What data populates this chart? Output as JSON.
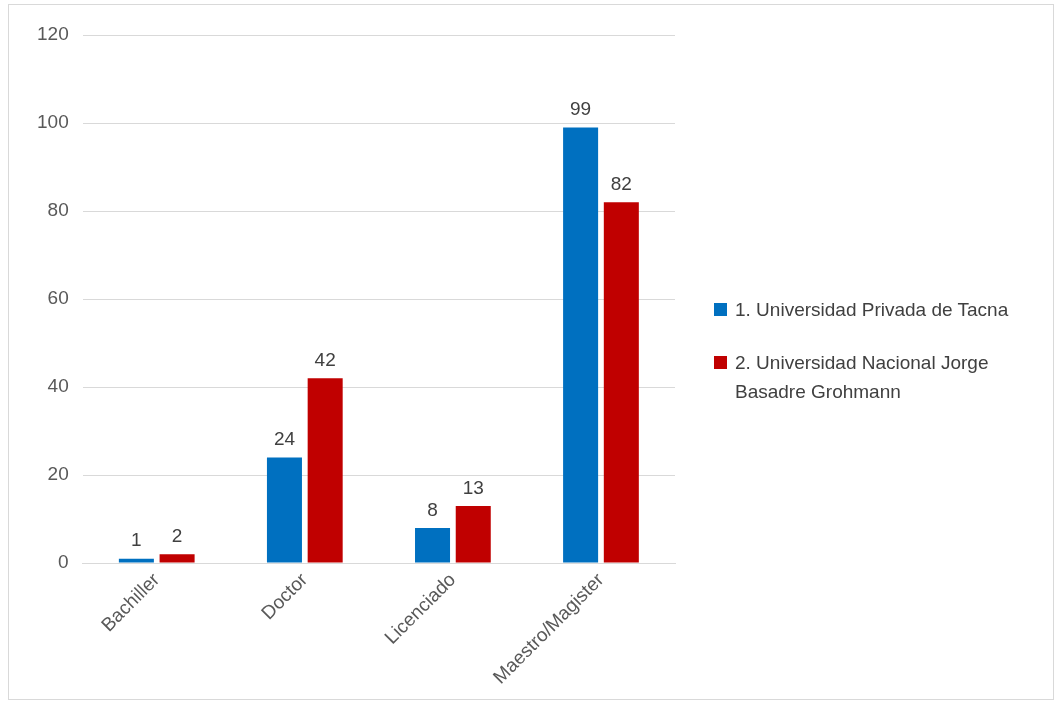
{
  "chart_data": {
    "type": "bar",
    "categories": [
      "Bachiller",
      "Doctor",
      "Licenciado",
      "Maestro/Magister"
    ],
    "series": [
      {
        "name": "1. Universidad Privada de Tacna",
        "color": "#0070c0",
        "values": [
          1,
          24,
          8,
          99
        ]
      },
      {
        "name": "2. Universidad Nacional Jorge Basadre Grohmann",
        "color": "#c00000",
        "values": [
          2,
          42,
          13,
          82
        ]
      }
    ],
    "ylim": [
      0,
      120
    ],
    "yticks": [
      0,
      20,
      40,
      60,
      80,
      100,
      120
    ],
    "grid": "y",
    "legend": "right",
    "data_labels": true
  }
}
